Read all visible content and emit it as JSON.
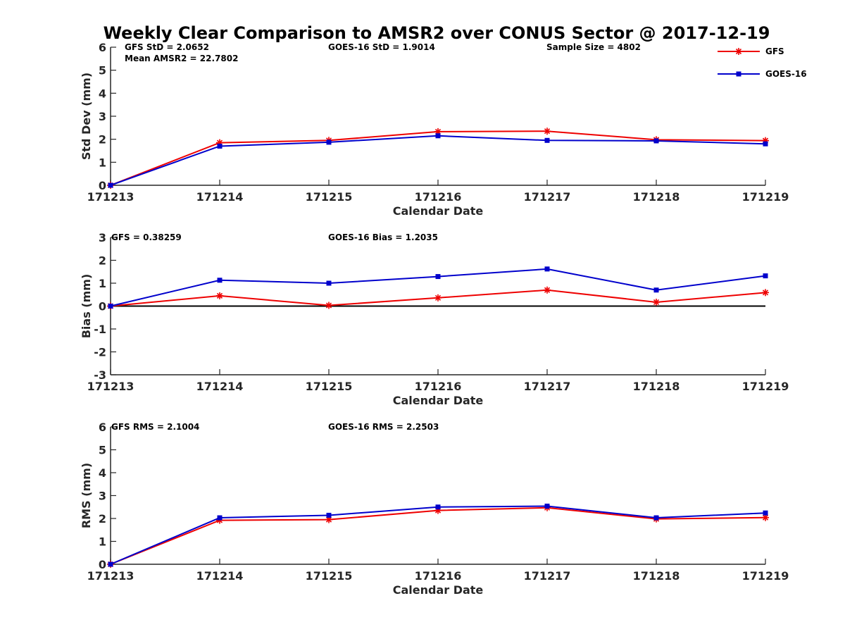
{
  "chart_data": {
    "title": "Weekly Clear Comparison to AMSR2 over CONUS Sector @ 2017-12-19",
    "legend": {
      "placement": "top-right",
      "entries": [
        {
          "name": "GFS",
          "color": "#ee0000",
          "marker": "asterisk"
        },
        {
          "name": "GOES-16",
          "color": "#0000cc",
          "marker": "square"
        }
      ]
    },
    "panels": [
      {
        "type": "line",
        "xlabel": "Calendar Date",
        "ylabel": "Std Dev (mm)",
        "categories": [
          "171213",
          "171214",
          "171215",
          "171216",
          "171217",
          "171218",
          "171219"
        ],
        "ylim": [
          0,
          6
        ],
        "yticks": [
          "0",
          "1",
          "2",
          "3",
          "4",
          "5",
          "6"
        ],
        "zero_line": false,
        "annotations": [
          {
            "text": "GFS StD = 2.0652"
          },
          {
            "text": "Mean AMSR2 = 22.7802"
          },
          {
            "text": "GOES-16 StD = 1.9014"
          },
          {
            "text": "Sample Size = 4802"
          }
        ],
        "series": [
          {
            "name": "GFS",
            "values": [
              0.0,
              1.85,
              1.95,
              2.33,
              2.35,
              1.98,
              1.94
            ]
          },
          {
            "name": "GOES-16",
            "values": [
              0.0,
              1.7,
              1.87,
              2.15,
              1.95,
              1.93,
              1.8
            ]
          }
        ]
      },
      {
        "type": "line",
        "xlabel": "Calendar Date",
        "ylabel": "Bias (mm)",
        "categories": [
          "171213",
          "171214",
          "171215",
          "171216",
          "171217",
          "171218",
          "171219"
        ],
        "ylim": [
          -3,
          3
        ],
        "yticks": [
          "-3",
          "-2",
          "-1",
          "0",
          "1",
          "2",
          "3"
        ],
        "zero_line": true,
        "annotations": [
          {
            "text": "GFS = 0.38259"
          },
          {
            "text": "GOES-16 Bias  = 1.2035"
          }
        ],
        "series": [
          {
            "name": "GFS",
            "values": [
              0.0,
              0.45,
              0.03,
              0.36,
              0.7,
              0.17,
              0.59
            ]
          },
          {
            "name": "GOES-16",
            "values": [
              0.0,
              1.13,
              1.0,
              1.29,
              1.62,
              0.7,
              1.32
            ]
          }
        ]
      },
      {
        "type": "line",
        "xlabel": "Calendar Date",
        "ylabel": "RMS (mm)",
        "categories": [
          "171213",
          "171214",
          "171215",
          "171216",
          "171217",
          "171218",
          "171219"
        ],
        "ylim": [
          0,
          6
        ],
        "yticks": [
          "0",
          "1",
          "2",
          "3",
          "4",
          "5",
          "6"
        ],
        "zero_line": false,
        "annotations": [
          {
            "text": "GFS RMS = 2.1004"
          },
          {
            "text": "GOES-16 RMS = 2.2503"
          }
        ],
        "series": [
          {
            "name": "GFS",
            "values": [
              0.0,
              1.92,
              1.95,
              2.35,
              2.47,
              1.98,
              2.04
            ]
          },
          {
            "name": "GOES-16",
            "values": [
              0.0,
              2.03,
              2.14,
              2.5,
              2.54,
              2.03,
              2.24
            ]
          }
        ]
      }
    ]
  }
}
